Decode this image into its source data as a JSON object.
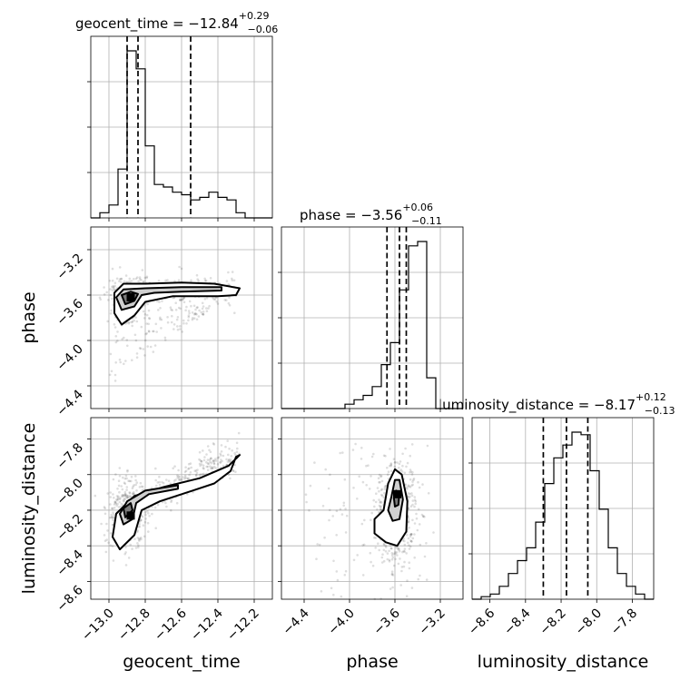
{
  "chart_data": {
    "type": "corner",
    "grid": true,
    "parameters": [
      "geocent_time",
      "phase",
      "luminosity_distance"
    ],
    "axis_labels": [
      "geocent_time",
      "phase",
      "luminosity_distance"
    ],
    "ranges": {
      "geocent_time": [
        -13.1,
        -12.1
      ],
      "phase": [
        -4.6,
        -3.0
      ],
      "luminosity_distance": [
        -8.7,
        -7.68
      ]
    },
    "ticks": {
      "geocent_time": {
        "values": [
          -13.0,
          -12.8,
          -12.6,
          -12.4,
          -12.2
        ],
        "labels": [
          "−13.0",
          "−12.8",
          "−12.6",
          "−12.4",
          "−12.2"
        ]
      },
      "phase": {
        "values": [
          -4.4,
          -4.0,
          -3.6,
          -3.2
        ],
        "labels": [
          "−4.4",
          "−4.0",
          "−3.6",
          "−3.2"
        ]
      },
      "luminosity_distance": {
        "values": [
          -8.6,
          -8.4,
          -8.2,
          -8.0,
          -7.8
        ],
        "labels": [
          "−8.6",
          "−8.4",
          "−8.2",
          "−8.0",
          "−7.8"
        ]
      }
    },
    "titles": [
      {
        "name": "geocent_time = −12.84",
        "plus": "+0.29",
        "minus": "−0.06"
      },
      {
        "name": "phase = −3.56",
        "plus": "+0.06",
        "minus": "−0.11"
      },
      {
        "name": "luminosity_distance = −8.17",
        "plus": "+0.12",
        "minus": "−0.13"
      }
    ],
    "quantiles": {
      "geocent_time": [
        -12.9,
        -12.84,
        -12.55
      ],
      "phase": [
        -3.67,
        -3.56,
        -3.5
      ],
      "luminosity_distance": [
        -8.3,
        -8.17,
        -8.05
      ]
    },
    "histograms": {
      "geocent_time": {
        "bin_start": -13.1,
        "bin_width": 0.05,
        "counts": [
          0,
          2,
          5,
          19,
          65,
          58,
          28,
          13,
          12,
          10,
          9,
          7,
          8,
          10,
          8,
          7,
          2,
          0,
          0,
          0
        ]
      },
      "phase": {
        "bin_start": -4.6,
        "bin_width": 0.08,
        "counts": [
          0,
          0,
          0,
          0,
          0,
          0,
          0,
          1,
          2,
          3,
          5,
          10,
          15,
          27,
          37,
          38,
          7,
          0,
          0,
          0
        ]
      },
      "luminosity_distance": {
        "bin_start": -8.7,
        "bin_width": 0.051,
        "counts": [
          0,
          1,
          2,
          5,
          10,
          15,
          20,
          30,
          45,
          55,
          60,
          65,
          64,
          50,
          35,
          20,
          10,
          5,
          2,
          0
        ]
      }
    },
    "peaks": [
      {
        "x_param": "geocent_time",
        "y_param": "phase",
        "x": -12.88,
        "y": -3.62
      },
      {
        "x_param": "geocent_time",
        "y_param": "luminosity_distance",
        "x": -12.88,
        "y": -8.23
      },
      {
        "x_param": "phase",
        "y_param": "luminosity_distance",
        "x": -3.58,
        "y": -8.11
      }
    ]
  }
}
